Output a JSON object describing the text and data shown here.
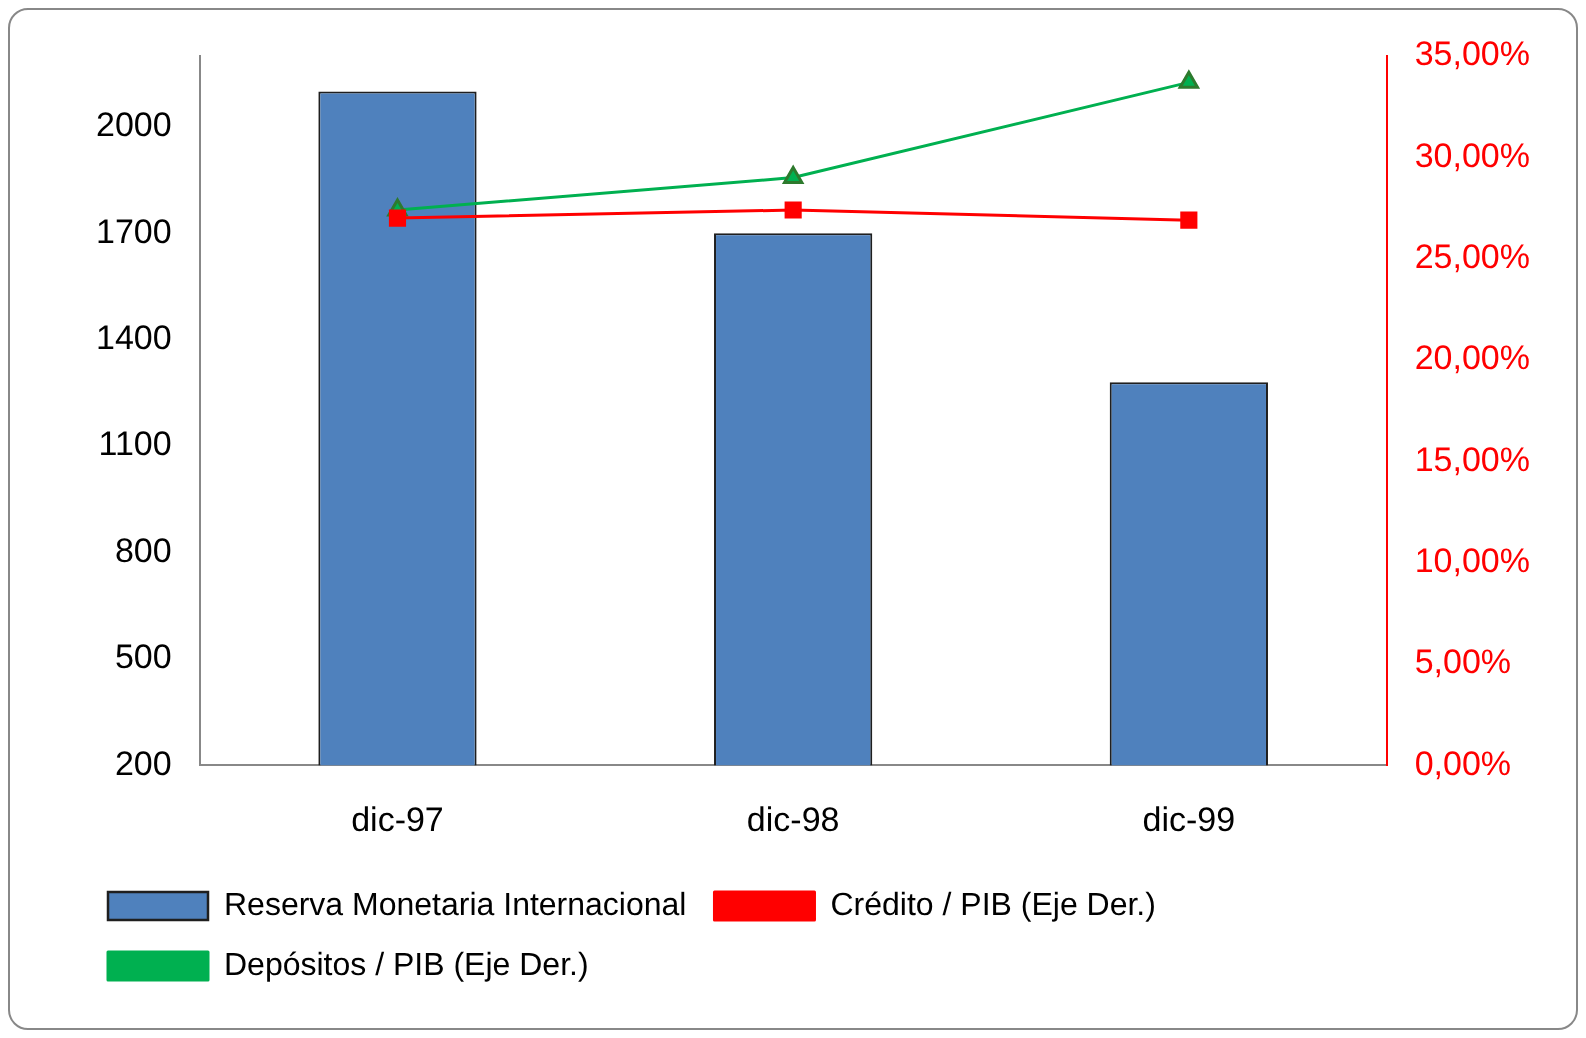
{
  "chart_data": {
    "type": "bar",
    "categories": [
      "dic-97",
      "dic-98",
      "dic-99"
    ],
    "series": [
      {
        "name": "Reserva Monetaria Internacional",
        "color": "#4f81bd",
        "values": [
          2100,
          1700,
          1280
        ]
      },
      {
        "name": "Crédito / PIB (Eje Der.)",
        "type": "line",
        "axis": "y2",
        "color": "#ff0000",
        "marker": "square",
        "values": [
          27.0,
          27.4,
          26.9
        ]
      },
      {
        "name": "Depósitos / PIB (Eje Der.)",
        "type": "line",
        "axis": "y2",
        "color": "#00b050",
        "marker": "triangle",
        "values": [
          27.4,
          29.0,
          33.7
        ]
      }
    ],
    "ylim": [
      200,
      2200
    ],
    "yticks": [
      200,
      500,
      800,
      1100,
      1400,
      1700,
      2000
    ],
    "y2lim": [
      0,
      35
    ],
    "y2ticks": [
      {
        "value": 0,
        "label": "0,00%"
      },
      {
        "value": 5,
        "label": "5,00%"
      },
      {
        "value": 10,
        "label": "10,00%"
      },
      {
        "value": 15,
        "label": "15,00%"
      },
      {
        "value": 20,
        "label": "20,00%"
      },
      {
        "value": 25,
        "label": "25,00%"
      },
      {
        "value": 30,
        "label": "30,00%"
      },
      {
        "value": 35,
        "label": "35,00%"
      }
    ],
    "grid": false,
    "legend": "bottom"
  }
}
